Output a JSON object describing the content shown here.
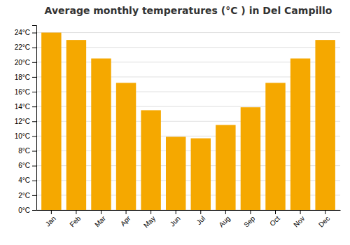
{
  "chart_data": {
    "type": "bar",
    "title": "Average monthly temperatures (°C ) in Del Campillo",
    "categories": [
      "Jan",
      "Feb",
      "Mar",
      "Apr",
      "May",
      "Jun",
      "Jul",
      "Aug",
      "Sep",
      "Oct",
      "Nov",
      "Dec"
    ],
    "values": [
      24.0,
      23.0,
      20.5,
      17.2,
      13.5,
      9.9,
      9.7,
      11.5,
      13.9,
      17.2,
      20.5,
      23.0
    ],
    "color": "#F5A800",
    "ylim": [
      0,
      25
    ],
    "yticks": [
      {
        "value": 0,
        "label": "0°C"
      },
      {
        "value": 2,
        "label": "2°C"
      },
      {
        "value": 4,
        "label": "4°C"
      },
      {
        "value": 6,
        "label": "6°C"
      },
      {
        "value": 8,
        "label": "8°C"
      },
      {
        "value": 10,
        "label": "10°C"
      },
      {
        "value": 12,
        "label": "12°C"
      },
      {
        "value": 14,
        "label": "14°C"
      },
      {
        "value": 16,
        "label": "16°C"
      },
      {
        "value": 18,
        "label": "18°C"
      },
      {
        "value": 20,
        "label": "20°C"
      },
      {
        "value": 22,
        "label": "22°C"
      },
      {
        "value": 24,
        "label": "24°C"
      }
    ],
    "grid": true
  }
}
